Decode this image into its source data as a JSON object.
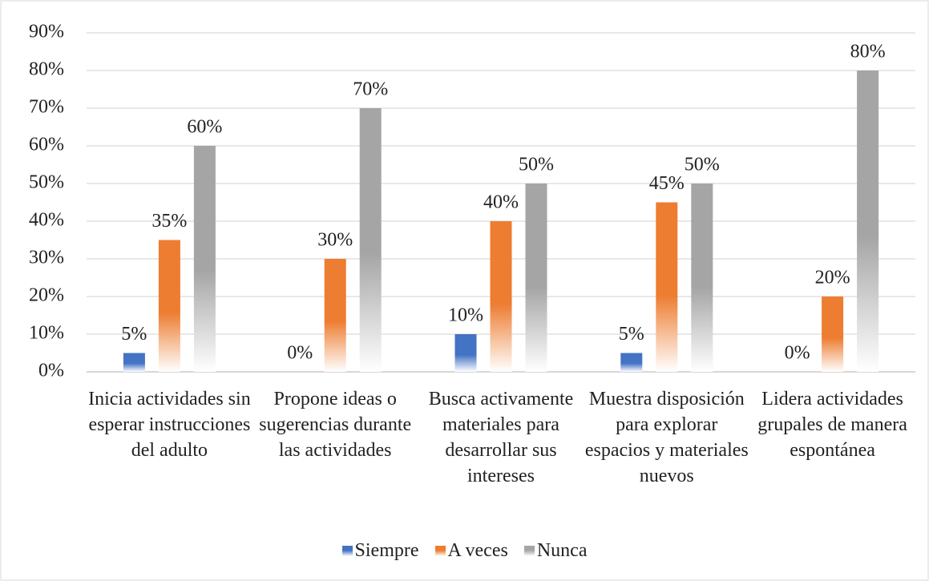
{
  "chart_data": {
    "type": "bar",
    "categories": [
      "Inicia actividades sin esperar instrucciones del adulto",
      "Propone ideas o sugerencias durante las actividades",
      "Busca activamente materiales para desarrollar sus intereses",
      "Muestra disposición para explorar espacios y materiales nuevos",
      "Lidera actividades grupales de manera espontánea"
    ],
    "series": [
      {
        "name": "Siempre",
        "color": "#4472c4",
        "values": [
          5,
          0,
          10,
          5,
          0
        ],
        "value_labels": [
          "5%",
          "0%",
          "10%",
          "5%",
          "0%"
        ]
      },
      {
        "name": "A veces",
        "color": "#ed7d31",
        "values": [
          35,
          30,
          40,
          45,
          20
        ],
        "value_labels": [
          "35%",
          "30%",
          "40%",
          "45%",
          "20%"
        ]
      },
      {
        "name": "Nunca",
        "color": "#a5a5a5",
        "values": [
          60,
          70,
          50,
          50,
          80
        ],
        "value_labels": [
          "60%",
          "70%",
          "50%",
          "50%",
          "80%"
        ]
      }
    ],
    "ylim": [
      0,
      90
    ],
    "yticks": [
      {
        "value": 0,
        "label": "0%"
      },
      {
        "value": 10,
        "label": "10%"
      },
      {
        "value": 20,
        "label": "20%"
      },
      {
        "value": 30,
        "label": "30%"
      },
      {
        "value": 40,
        "label": "40%"
      },
      {
        "value": 50,
        "label": "50%"
      },
      {
        "value": 60,
        "label": "60%"
      },
      {
        "value": 70,
        "label": "70%"
      },
      {
        "value": 80,
        "label": "80%"
      },
      {
        "value": 90,
        "label": "90%"
      }
    ],
    "grid": true,
    "legend": "bottom"
  }
}
